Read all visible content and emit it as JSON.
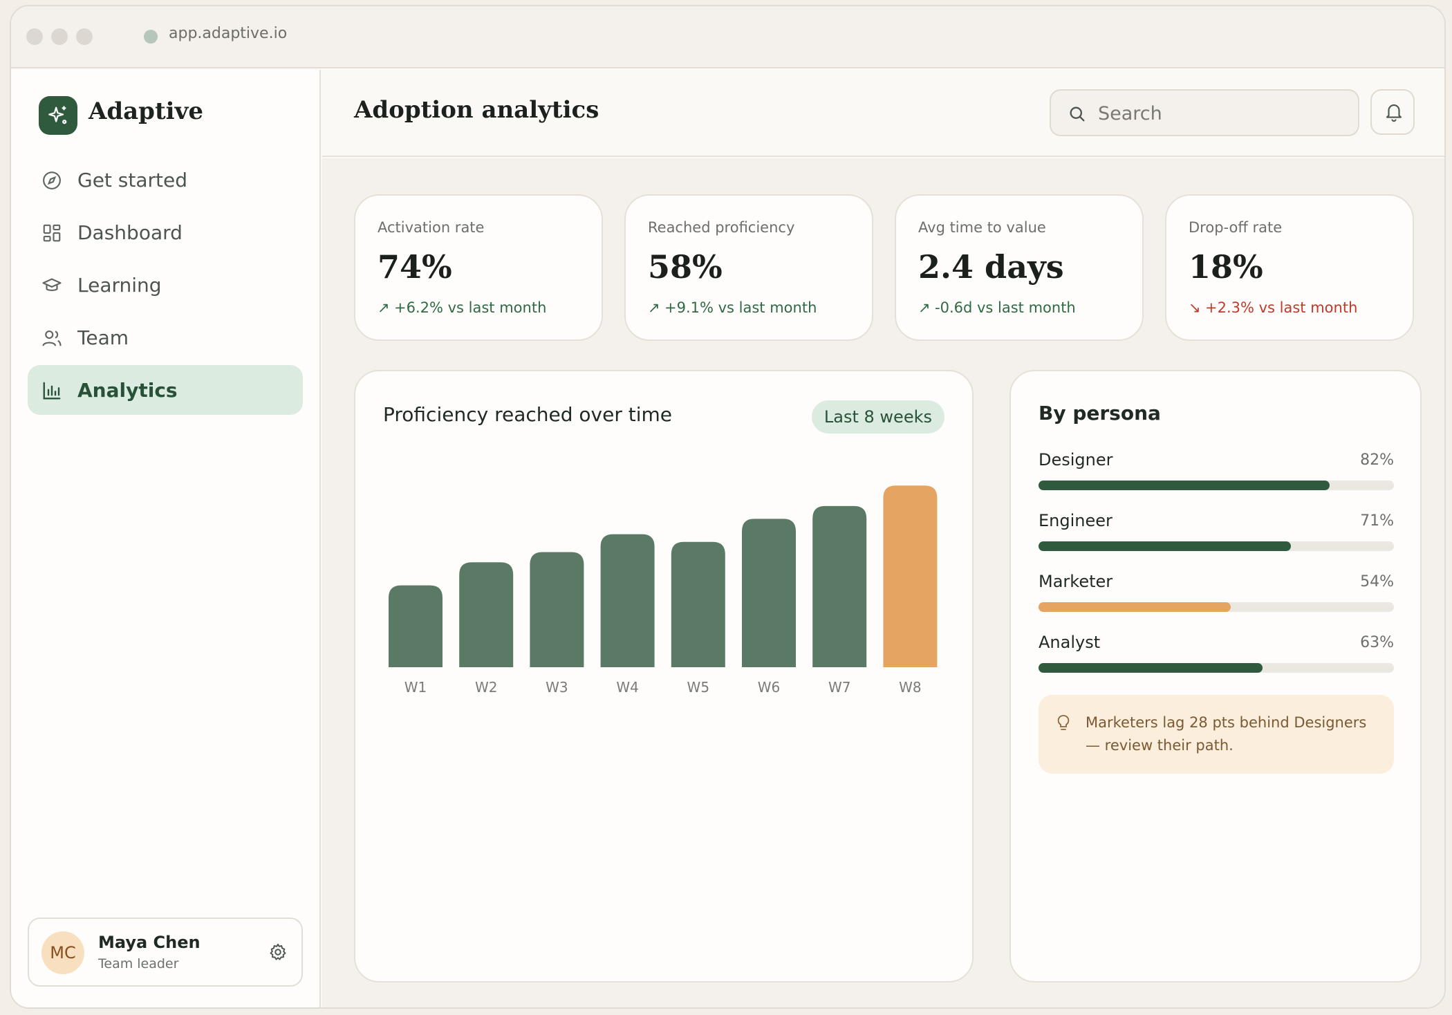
{
  "browser": {
    "url": "app.adaptive.io"
  },
  "brand": {
    "name": "Adaptive",
    "accent": "#2f5a3e",
    "highlight": "#e6a462"
  },
  "nav": {
    "items": [
      {
        "label": "Get started",
        "icon": "compass-icon"
      },
      {
        "label": "Dashboard",
        "icon": "dashboard-grid-icon"
      },
      {
        "label": "Learning",
        "icon": "graduation-cap-icon"
      },
      {
        "label": "Team",
        "icon": "users-icon"
      },
      {
        "label": "Analytics",
        "icon": "bar-chart-icon",
        "active": true
      }
    ]
  },
  "user": {
    "initials": "MC",
    "name": "Maya Chen",
    "role": "Team leader"
  },
  "header": {
    "title": "Adoption analytics",
    "search_placeholder": "Search"
  },
  "kpis": [
    {
      "label": "Activation rate",
      "value": "74%",
      "delta": "+6.2% vs last month",
      "trend": "up"
    },
    {
      "label": "Reached proficiency",
      "value": "58%",
      "delta": "+9.1% vs last month",
      "trend": "up"
    },
    {
      "label": "Avg time to value",
      "value": "2.4 days",
      "delta": "-0.6d vs last month",
      "trend": "up"
    },
    {
      "label": "Drop-off rate",
      "value": "18%",
      "delta": "+2.3% vs last month",
      "trend": "down"
    }
  ],
  "chart_panel": {
    "title": "Proficiency reached over time",
    "range": "Last 8 weeks"
  },
  "chart_data": {
    "type": "bar",
    "categories": [
      "W1",
      "W2",
      "W3",
      "W4",
      "W5",
      "W6",
      "W7",
      "W8"
    ],
    "values": [
      32,
      41,
      45,
      52,
      49,
      58,
      63,
      71
    ],
    "highlight_index": 7,
    "bar_color": "#5a7a65",
    "highlight_color": "#e6a462",
    "ylim": [
      0,
      80
    ],
    "grid": false
  },
  "persona_panel": {
    "title": "By persona",
    "rows": [
      {
        "name": "Designer",
        "pct_label": "82%",
        "value": 0.82,
        "color": "#2f5a3e"
      },
      {
        "name": "Engineer",
        "pct_label": "71%",
        "value": 0.71,
        "color": "#2f5a3e"
      },
      {
        "name": "Marketer",
        "pct_label": "54%",
        "value": 0.54,
        "color": "#e6a462"
      },
      {
        "name": "Analyst",
        "pct_label": "63%",
        "value": 0.63,
        "color": "#2f5a3e"
      }
    ],
    "insight": "Marketers lag 28 pts behind Designers — review their path."
  }
}
